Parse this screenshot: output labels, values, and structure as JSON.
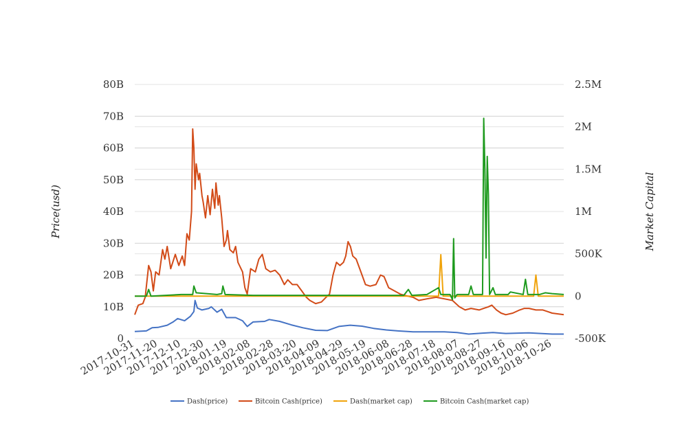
{
  "chart_data": {
    "type": "line",
    "y_left_label": "Price(usd)",
    "y_right_label": "Market Capital",
    "y_left_ticks": [
      "0",
      "10B",
      "20B",
      "30B",
      "40B",
      "50B",
      "60B",
      "70B",
      "80B"
    ],
    "y_right_ticks": [
      "-500K",
      "0",
      "500K",
      "1M",
      "1.5M",
      "2M",
      "2.5M"
    ],
    "ylim_left": [
      0,
      80000000000
    ],
    "ylim_right": [
      -500000,
      2500000
    ],
    "x_range": [
      "2017-10-31",
      "2018-11-05"
    ],
    "x_tick_labels": [
      "2017-10-31",
      "2017-11-20",
      "2017-12-10",
      "2017-12-30",
      "2018-01-19",
      "2018-02-08",
      "2018-02-28",
      "2018-03-20",
      "2018-04-09",
      "2018-04-29",
      "2018-05-19",
      "2018-06-08",
      "2018-06-28",
      "2018-07-18",
      "2018-08-07",
      "2018-08-27",
      "2018-09-16",
      "2018-10-06",
      "2018-10-26"
    ],
    "grid": true,
    "legend_position": "bottom",
    "series": [
      {
        "name": "Dash(price)",
        "axis": "left",
        "color": "#4472c4",
        "points": [
          [
            "2017-10-31",
            2200000000.0
          ],
          [
            "2017-11-10",
            2400000000.0
          ],
          [
            "2017-11-15",
            3400000000.0
          ],
          [
            "2017-11-20",
            3500000000.0
          ],
          [
            "2017-11-28",
            4200000000.0
          ],
          [
            "2017-12-03",
            5200000000.0
          ],
          [
            "2017-12-07",
            6300000000.0
          ],
          [
            "2017-12-13",
            5600000000.0
          ],
          [
            "2017-12-18",
            7000000000.0
          ],
          [
            "2017-12-21",
            8500000000.0
          ],
          [
            "2017-12-22",
            12000000000.0
          ],
          [
            "2017-12-24",
            9600000000.0
          ],
          [
            "2017-12-28",
            9000000000.0
          ],
          [
            "2018-01-03",
            9500000000.0
          ],
          [
            "2018-01-05",
            10000000000.0
          ],
          [
            "2018-01-10",
            8300000000.0
          ],
          [
            "2018-01-14",
            9200000000.0
          ],
          [
            "2018-01-18",
            6600000000.0
          ],
          [
            "2018-01-26",
            6600000000.0
          ],
          [
            "2018-02-01",
            5600000000.0
          ],
          [
            "2018-02-05",
            3800000000.0
          ],
          [
            "2018-02-10",
            5200000000.0
          ],
          [
            "2018-02-20",
            5400000000.0
          ],
          [
            "2018-02-24",
            6000000000.0
          ],
          [
            "2018-03-05",
            5400000000.0
          ],
          [
            "2018-03-15",
            4300000000.0
          ],
          [
            "2018-03-25",
            3400000000.0
          ],
          [
            "2018-04-05",
            2600000000.0
          ],
          [
            "2018-04-15",
            2500000000.0
          ],
          [
            "2018-04-25",
            3800000000.0
          ],
          [
            "2018-05-05",
            4200000000.0
          ],
          [
            "2018-05-15",
            3900000000.0
          ],
          [
            "2018-05-25",
            3200000000.0
          ],
          [
            "2018-06-05",
            2700000000.0
          ],
          [
            "2018-06-15",
            2400000000.0
          ],
          [
            "2018-06-28",
            2100000000.0
          ],
          [
            "2018-07-10",
            2100000000.0
          ],
          [
            "2018-07-25",
            2100000000.0
          ],
          [
            "2018-08-05",
            1900000000.0
          ],
          [
            "2018-08-15",
            1400000000.0
          ],
          [
            "2018-08-27",
            1700000000.0
          ],
          [
            "2018-09-05",
            1900000000.0
          ],
          [
            "2018-09-16",
            1600000000.0
          ],
          [
            "2018-10-06",
            1800000000.0
          ],
          [
            "2018-10-26",
            1400000000.0
          ],
          [
            "2018-11-05",
            1400000000.0
          ]
        ]
      },
      {
        "name": "Bitcoin Cash(price)",
        "axis": "left",
        "color": "#d24b18",
        "points": [
          [
            "2017-10-31",
            7500000000.0
          ],
          [
            "2017-11-03",
            10500000000.0
          ],
          [
            "2017-11-07",
            11000000000.0
          ],
          [
            "2017-11-09",
            13000000000.0
          ],
          [
            "2017-11-12",
            23000000000.0
          ],
          [
            "2017-11-14",
            21000000000.0
          ],
          [
            "2017-11-16",
            15000000000.0
          ],
          [
            "2017-11-18",
            21000000000.0
          ],
          [
            "2017-11-21",
            20000000000.0
          ],
          [
            "2017-11-24",
            28000000000.0
          ],
          [
            "2017-11-26",
            25000000000.0
          ],
          [
            "2017-11-28",
            29000000000.0
          ],
          [
            "2017-12-01",
            22000000000.0
          ],
          [
            "2017-12-05",
            26500000000.0
          ],
          [
            "2017-12-08",
            23000000000.0
          ],
          [
            "2017-12-11",
            26000000000.0
          ],
          [
            "2017-12-13",
            23000000000.0
          ],
          [
            "2017-12-15",
            33000000000.0
          ],
          [
            "2017-12-17",
            31000000000.0
          ],
          [
            "2017-12-19",
            40000000000.0
          ],
          [
            "2017-12-20",
            66000000000.0
          ],
          [
            "2017-12-21",
            60000000000.0
          ],
          [
            "2017-12-22",
            47000000000.0
          ],
          [
            "2017-12-23",
            55000000000.0
          ],
          [
            "2017-12-25",
            50000000000.0
          ],
          [
            "2017-12-26",
            52000000000.0
          ],
          [
            "2017-12-28",
            45000000000.0
          ],
          [
            "2017-12-29",
            43000000000.0
          ],
          [
            "2017-12-31",
            38000000000.0
          ],
          [
            "2018-01-02",
            45000000000.0
          ],
          [
            "2018-01-04",
            39000000000.0
          ],
          [
            "2018-01-06",
            47000000000.0
          ],
          [
            "2018-01-08",
            41000000000.0
          ],
          [
            "2018-01-09",
            49000000000.0
          ],
          [
            "2018-01-11",
            42000000000.0
          ],
          [
            "2018-01-12",
            45000000000.0
          ],
          [
            "2018-01-14",
            38000000000.0
          ],
          [
            "2018-01-16",
            29000000000.0
          ],
          [
            "2018-01-18",
            31000000000.0
          ],
          [
            "2018-01-19",
            34000000000.0
          ],
          [
            "2018-01-21",
            28000000000.0
          ],
          [
            "2018-01-24",
            27000000000.0
          ],
          [
            "2018-01-26",
            29000000000.0
          ],
          [
            "2018-01-28",
            24000000000.0
          ],
          [
            "2018-02-01",
            21000000000.0
          ],
          [
            "2018-02-03",
            16000000000.0
          ],
          [
            "2018-02-05",
            14000000000.0
          ],
          [
            "2018-02-08",
            22000000000.0
          ],
          [
            "2018-02-12",
            21000000000.0
          ],
          [
            "2018-02-15",
            25000000000.0
          ],
          [
            "2018-02-18",
            26500000000.0
          ],
          [
            "2018-02-21",
            22000000000.0
          ],
          [
            "2018-02-25",
            21000000000.0
          ],
          [
            "2018-03-01",
            21500000000.0
          ],
          [
            "2018-03-05",
            20000000000.0
          ],
          [
            "2018-03-09",
            17000000000.0
          ],
          [
            "2018-03-12",
            18500000000.0
          ],
          [
            "2018-03-16",
            17000000000.0
          ],
          [
            "2018-03-20",
            17000000000.0
          ],
          [
            "2018-03-24",
            15000000000.0
          ],
          [
            "2018-03-28",
            13000000000.0
          ],
          [
            "2018-03-31",
            12000000000.0
          ],
          [
            "2018-04-05",
            11000000000.0
          ],
          [
            "2018-04-10",
            11500000000.0
          ],
          [
            "2018-04-14",
            13000000000.0
          ],
          [
            "2018-04-17",
            14000000000.0
          ],
          [
            "2018-04-20",
            20000000000.0
          ],
          [
            "2018-04-23",
            24000000000.0
          ],
          [
            "2018-04-26",
            23000000000.0
          ],
          [
            "2018-04-29",
            24000000000.0
          ],
          [
            "2018-05-01",
            26000000000.0
          ],
          [
            "2018-05-03",
            30500000000.0
          ],
          [
            "2018-05-05",
            29000000000.0
          ],
          [
            "2018-05-07",
            26000000000.0
          ],
          [
            "2018-05-10",
            25000000000.0
          ],
          [
            "2018-05-14",
            21000000000.0
          ],
          [
            "2018-05-18",
            17000000000.0
          ],
          [
            "2018-05-22",
            16500000000.0
          ],
          [
            "2018-05-27",
            17000000000.0
          ],
          [
            "2018-05-31",
            20000000000.0
          ],
          [
            "2018-06-03",
            19500000000.0
          ],
          [
            "2018-06-07",
            16000000000.0
          ],
          [
            "2018-06-12",
            15000000000.0
          ],
          [
            "2018-06-17",
            14000000000.0
          ],
          [
            "2018-06-22",
            13500000000.0
          ],
          [
            "2018-06-28",
            13000000000.0
          ],
          [
            "2018-07-03",
            12000000000.0
          ],
          [
            "2018-07-10",
            12500000000.0
          ],
          [
            "2018-07-18",
            13000000000.0
          ],
          [
            "2018-07-25",
            12500000000.0
          ],
          [
            "2018-08-01",
            12000000000.0
          ],
          [
            "2018-08-07",
            10000000000.0
          ],
          [
            "2018-08-12",
            9000000000.0
          ],
          [
            "2018-08-17",
            9500000000.0
          ],
          [
            "2018-08-24",
            9000000000.0
          ],
          [
            "2018-08-28",
            9500000000.0
          ],
          [
            "2018-09-01",
            10000000000.0
          ],
          [
            "2018-09-04",
            10500000000.0
          ],
          [
            "2018-09-08",
            9000000000.0
          ],
          [
            "2018-09-12",
            8000000000.0
          ],
          [
            "2018-09-16",
            7500000000.0
          ],
          [
            "2018-09-22",
            8000000000.0
          ],
          [
            "2018-09-28",
            9000000000.0
          ],
          [
            "2018-10-02",
            9500000000.0
          ],
          [
            "2018-10-06",
            9500000000.0
          ],
          [
            "2018-10-12",
            9000000000.0
          ],
          [
            "2018-10-18",
            9000000000.0
          ],
          [
            "2018-10-22",
            8500000000.0
          ],
          [
            "2018-10-26",
            8000000000.0
          ],
          [
            "2018-11-05",
            7500000000.0
          ]
        ]
      },
      {
        "name": "Dash(market cap)",
        "axis": "right",
        "color": "#f0a30a",
        "points": [
          [
            "2017-10-31",
            0
          ],
          [
            "2018-07-18",
            0
          ],
          [
            "2018-07-20",
            0
          ],
          [
            "2018-07-22",
            490000
          ],
          [
            "2018-07-24",
            0
          ],
          [
            "2018-10-10",
            0
          ],
          [
            "2018-10-12",
            250000
          ],
          [
            "2018-10-14",
            0
          ],
          [
            "2018-11-05",
            0
          ]
        ]
      },
      {
        "name": "Bitcoin Cash(market cap)",
        "axis": "right",
        "color": "#1e9a1e",
        "points": [
          [
            "2017-10-31",
            0
          ],
          [
            "2017-11-10",
            0
          ],
          [
            "2017-11-12",
            80000
          ],
          [
            "2017-11-14",
            0
          ],
          [
            "2017-12-10",
            20000
          ],
          [
            "2017-12-20",
            20000
          ],
          [
            "2017-12-21",
            120000
          ],
          [
            "2017-12-23",
            40000
          ],
          [
            "2018-01-10",
            20000
          ],
          [
            "2018-01-14",
            30000
          ],
          [
            "2018-01-15",
            120000
          ],
          [
            "2018-01-17",
            20000
          ],
          [
            "2018-02-10",
            10000
          ],
          [
            "2018-06-20",
            10000
          ],
          [
            "2018-06-24",
            80000
          ],
          [
            "2018-06-27",
            10000
          ],
          [
            "2018-07-10",
            20000
          ],
          [
            "2018-07-20",
            100000
          ],
          [
            "2018-07-22",
            20000
          ],
          [
            "2018-07-30",
            20000
          ],
          [
            "2018-08-01",
            -40000
          ],
          [
            "2018-08-02",
            680000
          ],
          [
            "2018-08-03",
            -20000
          ],
          [
            "2018-08-05",
            20000
          ],
          [
            "2018-08-15",
            20000
          ],
          [
            "2018-08-17",
            120000
          ],
          [
            "2018-08-19",
            20000
          ],
          [
            "2018-08-27",
            20000
          ],
          [
            "2018-08-28",
            2100000
          ],
          [
            "2018-08-29",
            1500000
          ],
          [
            "2018-08-30",
            450000
          ],
          [
            "2018-08-31",
            1650000
          ],
          [
            "2018-09-01",
            1200000
          ],
          [
            "2018-09-02",
            20000
          ],
          [
            "2018-09-05",
            100000
          ],
          [
            "2018-09-07",
            20000
          ],
          [
            "2018-09-18",
            20000
          ],
          [
            "2018-09-20",
            50000
          ],
          [
            "2018-10-01",
            20000
          ],
          [
            "2018-10-03",
            200000
          ],
          [
            "2018-10-05",
            20000
          ],
          [
            "2018-10-15",
            20000
          ],
          [
            "2018-10-20",
            40000
          ],
          [
            "2018-10-26",
            30000
          ],
          [
            "2018-11-05",
            20000
          ]
        ]
      }
    ]
  }
}
